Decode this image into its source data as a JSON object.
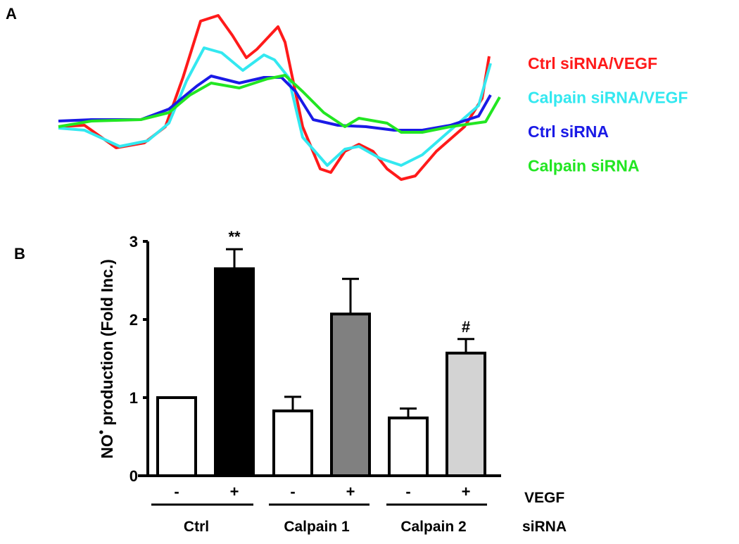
{
  "chart_data": [
    {
      "panel_label": "A",
      "type": "line",
      "title": "",
      "xlabel": "",
      "ylabel": "",
      "units": "arbitrary",
      "series": [
        {
          "name": "Ctrl siRNA/VEGF",
          "color": "#ff1a1a",
          "x": [
            0,
            37,
            82,
            122,
            152,
            177,
            202,
            227,
            247,
            267,
            282,
            312,
            322,
            347,
            372,
            387,
            407,
            427,
            447,
            467,
            487,
            507,
            537,
            577,
            602,
            612
          ],
          "y": [
            0,
            2,
            -30,
            -23,
            0,
            70,
            150,
            158,
            130,
            98,
            110,
            142,
            120,
            0,
            -60,
            -65,
            -35,
            -25,
            -35,
            -60,
            -75,
            -70,
            -35,
            0,
            40,
            100
          ]
        },
        {
          "name": "Calpain siRNA/VEGF",
          "color": "#33e8f0",
          "x": [
            0,
            37,
            87,
            127,
            157,
            182,
            207,
            232,
            262,
            292,
            307,
            327,
            347,
            382,
            407,
            427,
            457,
            487,
            517,
            557,
            597,
            614
          ],
          "y": [
            -2,
            -5,
            -28,
            -20,
            5,
            65,
            112,
            105,
            80,
            102,
            95,
            70,
            -15,
            -55,
            -32,
            -28,
            -45,
            -55,
            -40,
            -5,
            30,
            90
          ]
        },
        {
          "name": "Ctrl siRNA",
          "color": "#1a1ae6",
          "x": [
            0,
            47,
            117,
            157,
            197,
            217,
            257,
            292,
            317,
            337,
            362,
            397,
            437,
            477,
            517,
            557,
            597,
            614
          ],
          "y": [
            8,
            10,
            10,
            25,
            58,
            72,
            62,
            70,
            70,
            50,
            10,
            2,
            0,
            -5,
            -5,
            2,
            15,
            45
          ]
        },
        {
          "name": "Calpain siRNA",
          "color": "#22e622",
          "x": [
            0,
            47,
            117,
            157,
            187,
            217,
            257,
            297,
            322,
            347,
            377,
            407,
            427,
            467,
            487,
            517,
            557,
            607,
            627
          ],
          "y": [
            0,
            8,
            10,
            20,
            45,
            62,
            55,
            68,
            73,
            50,
            20,
            0,
            12,
            5,
            -8,
            -8,
            0,
            7,
            42
          ]
        }
      ]
    },
    {
      "panel_label": "B",
      "type": "bar",
      "title": "",
      "ylabel_main": "NO",
      "ylabel_rest": " production (Fold Inc.)",
      "ylim": [
        0,
        3
      ],
      "yticks": [
        "0",
        "1",
        "2",
        "3"
      ],
      "categories": [
        "Ctrl -",
        "Ctrl +",
        "Calpain 1 -",
        "Calpain 1 +",
        "Calpain 2 -",
        "Calpain 2 +"
      ],
      "values": [
        1.0,
        2.65,
        0.83,
        2.07,
        0.74,
        1.57
      ],
      "errors": [
        0,
        0.25,
        0.18,
        0.45,
        0.12,
        0.18
      ],
      "fills": [
        "#ffffff",
        "#000000",
        "#ffffff",
        "#808080",
        "#ffffff",
        "#d3d3d3"
      ],
      "annotations": [
        "",
        "**",
        "",
        "",
        "",
        "#"
      ],
      "vegf_row": {
        "label": "VEGF",
        "signs": [
          "-",
          "+",
          "-",
          "+",
          "-",
          "+"
        ]
      },
      "sirna_row": {
        "label": "siRNA",
        "groups": [
          "Ctrl",
          "Calpain 1",
          "Calpain 2"
        ]
      }
    }
  ]
}
